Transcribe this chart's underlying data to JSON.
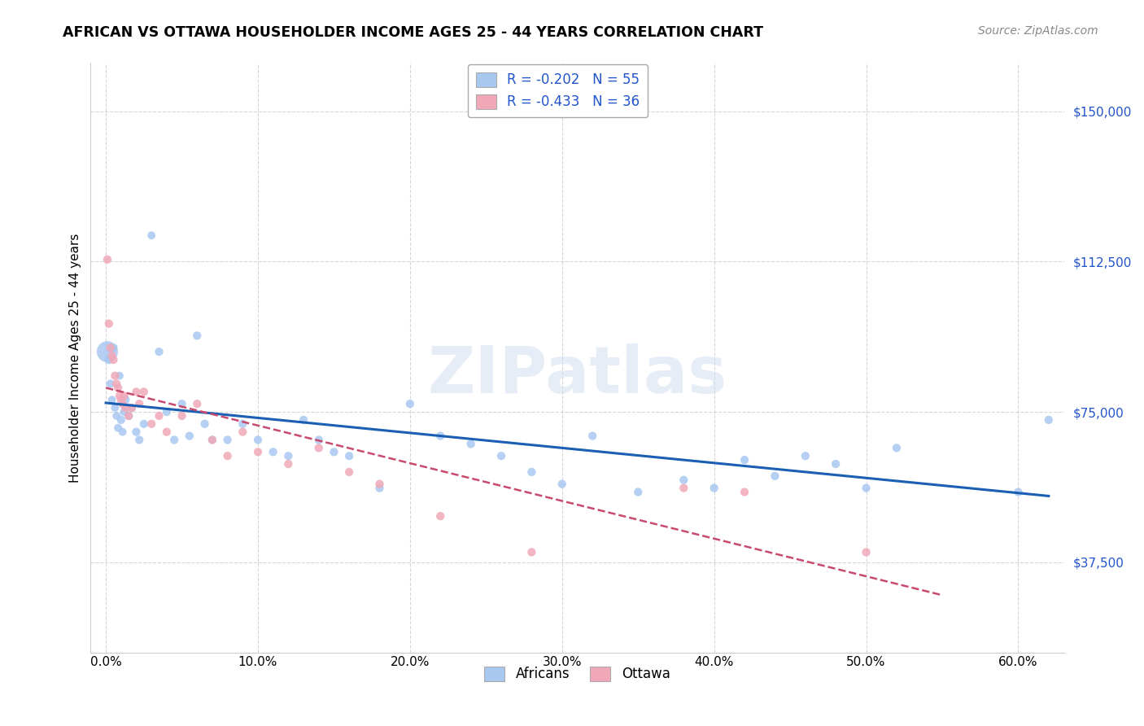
{
  "title": "AFRICAN VS OTTAWA HOUSEHOLDER INCOME AGES 25 - 44 YEARS CORRELATION CHART",
  "source": "Source: ZipAtlas.com",
  "ylabel": "Householder Income Ages 25 - 44 years",
  "xlabel_ticks": [
    "0.0%",
    "10.0%",
    "20.0%",
    "30.0%",
    "40.0%",
    "50.0%",
    "60.0%"
  ],
  "xlabel_vals": [
    0.0,
    0.1,
    0.2,
    0.3,
    0.4,
    0.5,
    0.6
  ],
  "ytick_labels": [
    "$37,500",
    "$75,000",
    "$112,500",
    "$150,000"
  ],
  "ytick_vals": [
    37500,
    75000,
    112500,
    150000
  ],
  "ylim": [
    15000,
    162000
  ],
  "xlim": [
    -0.01,
    0.63
  ],
  "watermark": "ZIPatlas",
  "legend_africans": "R = -0.202   N = 55",
  "legend_ottawa": "R = -0.433   N = 36",
  "africans_color": "#a8c8f0",
  "ottawa_color": "#f0a8b8",
  "africans_line_color": "#1a5fb4",
  "ottawa_line_color": "#c84b6e",
  "background_color": "#ffffff",
  "africans_x": [
    0.001,
    0.002,
    0.003,
    0.004,
    0.005,
    0.006,
    0.007,
    0.008,
    0.009,
    0.01,
    0.011,
    0.012,
    0.013,
    0.015,
    0.017,
    0.02,
    0.022,
    0.025,
    0.03,
    0.035,
    0.04,
    0.045,
    0.05,
    0.055,
    0.06,
    0.065,
    0.07,
    0.08,
    0.09,
    0.1,
    0.11,
    0.12,
    0.13,
    0.14,
    0.15,
    0.16,
    0.18,
    0.2,
    0.22,
    0.24,
    0.26,
    0.28,
    0.3,
    0.32,
    0.35,
    0.38,
    0.4,
    0.42,
    0.44,
    0.46,
    0.48,
    0.5,
    0.52,
    0.6,
    0.62
  ],
  "africans_y": [
    90000,
    88000,
    82000,
    78000,
    91000,
    76000,
    74000,
    71000,
    84000,
    73000,
    70000,
    75000,
    78000,
    74000,
    76000,
    70000,
    68000,
    72000,
    119000,
    90000,
    75000,
    68000,
    77000,
    69000,
    94000,
    72000,
    68000,
    68000,
    72000,
    68000,
    65000,
    64000,
    73000,
    68000,
    65000,
    64000,
    56000,
    77000,
    69000,
    67000,
    64000,
    60000,
    57000,
    69000,
    55000,
    58000,
    56000,
    63000,
    59000,
    64000,
    62000,
    56000,
    66000,
    55000,
    73000
  ],
  "africans_size": [
    350,
    60,
    55,
    50,
    55,
    50,
    50,
    50,
    50,
    55,
    50,
    55,
    55,
    55,
    55,
    55,
    55,
    55,
    50,
    55,
    55,
    55,
    55,
    55,
    55,
    55,
    55,
    55,
    55,
    55,
    55,
    55,
    55,
    55,
    55,
    55,
    55,
    55,
    55,
    55,
    55,
    55,
    55,
    55,
    55,
    55,
    55,
    55,
    55,
    55,
    55,
    55,
    55,
    55,
    55
  ],
  "ottawa_x": [
    0.001,
    0.002,
    0.003,
    0.004,
    0.005,
    0.006,
    0.007,
    0.008,
    0.009,
    0.01,
    0.011,
    0.012,
    0.013,
    0.015,
    0.017,
    0.02,
    0.022,
    0.025,
    0.03,
    0.035,
    0.04,
    0.05,
    0.06,
    0.07,
    0.08,
    0.09,
    0.1,
    0.12,
    0.14,
    0.16,
    0.18,
    0.22,
    0.28,
    0.38,
    0.42,
    0.5
  ],
  "ottawa_y": [
    113000,
    97000,
    91000,
    89000,
    88000,
    84000,
    82000,
    81000,
    79000,
    78000,
    77000,
    79000,
    76000,
    74000,
    76000,
    80000,
    77000,
    80000,
    72000,
    74000,
    70000,
    74000,
    77000,
    68000,
    64000,
    70000,
    65000,
    62000,
    66000,
    60000,
    57000,
    49000,
    40000,
    56000,
    55000,
    40000
  ]
}
